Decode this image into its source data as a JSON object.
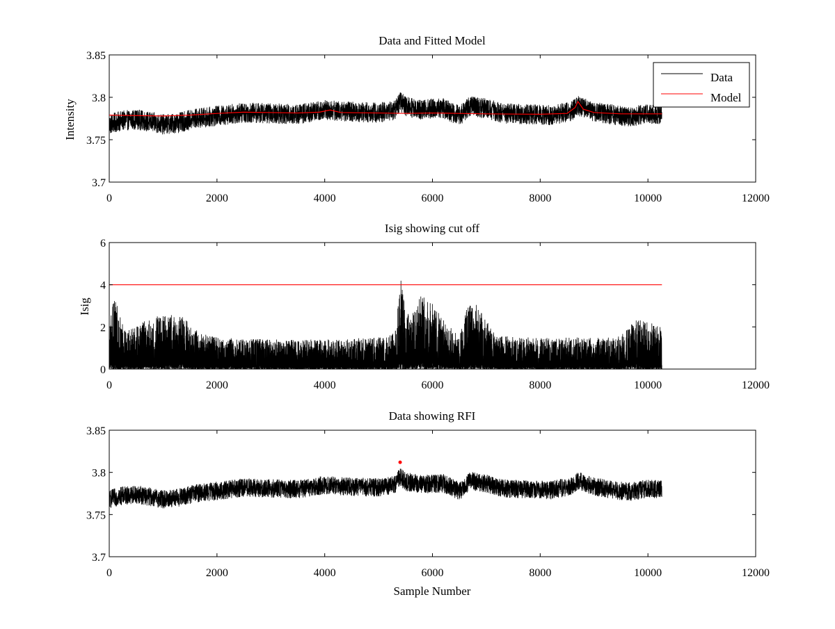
{
  "figure": {
    "background": "#ffffff"
  },
  "chart_data": [
    {
      "type": "line",
      "title": "Data and Fitted Model",
      "xlabel": "",
      "ylabel": "Intensity",
      "xlim": [
        0,
        12000
      ],
      "ylim": [
        3.7,
        3.85
      ],
      "xticks": [
        "0",
        "2000",
        "4000",
        "6000",
        "8000",
        "10000",
        "12000"
      ],
      "yticks": [
        "3.7",
        "3.75",
        "3.8",
        "3.85"
      ],
      "legend": {
        "placement": "top-right",
        "entries": [
          "Data",
          "Model"
        ]
      },
      "series": [
        {
          "name": "Data",
          "color": "#000000",
          "kind": "noisy",
          "n_samples": 10260,
          "noise_halfwidth": 0.012,
          "baseline": {
            "x": [
              0,
              200,
              500,
              1000,
              1300,
              1600,
              2000,
              2500,
              3000,
              3500,
              4000,
              4500,
              5000,
              5300,
              5400,
              5500,
              5800,
              6200,
              6500,
              6700,
              7000,
              7300,
              7800,
              8200,
              8600,
              8700,
              9000,
              9500,
              9700,
              10000,
              10260
            ],
            "y": [
              3.768,
              3.772,
              3.774,
              3.768,
              3.77,
              3.775,
              3.778,
              3.782,
              3.781,
              3.78,
              3.785,
              3.783,
              3.782,
              3.785,
              3.795,
              3.789,
              3.786,
              3.787,
              3.778,
              3.79,
              3.787,
              3.781,
              3.78,
              3.779,
              3.784,
              3.79,
              3.783,
              3.778,
              3.777,
              3.781,
              3.78
            ]
          }
        },
        {
          "name": "Model",
          "color": "#ff0000",
          "kind": "smooth",
          "x": [
            0,
            500,
            1000,
            1500,
            2000,
            2500,
            3000,
            3500,
            3900,
            4100,
            4300,
            5000,
            5500,
            6000,
            6500,
            7000,
            8000,
            8500,
            8650,
            8700,
            8800,
            9000,
            9500,
            10260
          ],
          "y": [
            3.779,
            3.7785,
            3.778,
            3.779,
            3.781,
            3.7825,
            3.782,
            3.7815,
            3.7825,
            3.785,
            3.782,
            3.7815,
            3.781,
            3.7815,
            3.781,
            3.7805,
            3.78,
            3.781,
            3.788,
            3.795,
            3.786,
            3.782,
            3.7805,
            3.7805
          ]
        }
      ]
    },
    {
      "type": "line",
      "title": "Isig showing cut off",
      "xlabel": "",
      "ylabel": "Isig",
      "xlim": [
        0,
        12000
      ],
      "ylim": [
        0,
        6
      ],
      "xticks": [
        "0",
        "2000",
        "4000",
        "6000",
        "8000",
        "10000",
        "12000"
      ],
      "yticks": [
        "0",
        "2",
        "4",
        "6"
      ],
      "series": [
        {
          "color": "#000000",
          "kind": "spiky",
          "n_samples": 10260,
          "envelope": {
            "x": [
              0,
              100,
              300,
              800,
              1300,
              1700,
              2000,
              3000,
              4000,
              5000,
              5300,
              5420,
              5500,
              5700,
              5800,
              6200,
              6500,
              6700,
              6900,
              7200,
              8000,
              9000,
              9500,
              9800,
              10260
            ],
            "y": [
              2.6,
              3.4,
              1.8,
              2.5,
              2.6,
              1.7,
              1.5,
              1.4,
              1.4,
              1.5,
              1.7,
              4.3,
              2.6,
              2.8,
              3.8,
              2.4,
              1.5,
              3.5,
              2.7,
              1.6,
              1.5,
              1.5,
              1.6,
              2.4,
              2.0
            ]
          }
        },
        {
          "color": "#ff0000",
          "kind": "cutoff",
          "x": [
            0,
            10260
          ],
          "y": [
            4,
            4
          ]
        }
      ]
    },
    {
      "type": "line",
      "title": "Data showing RFI",
      "xlabel": "Sample Number",
      "ylabel": "",
      "xlim": [
        0,
        12000
      ],
      "ylim": [
        3.7,
        3.85
      ],
      "xticks": [
        "0",
        "2000",
        "4000",
        "6000",
        "8000",
        "10000",
        "12000"
      ],
      "yticks": [
        "3.7",
        "3.75",
        "3.8",
        "3.85"
      ],
      "series": [
        {
          "color": "#000000",
          "kind": "noisy",
          "n_samples": 10260,
          "noise_halfwidth": 0.011,
          "baseline": {
            "x": [
              0,
              200,
              500,
              1000,
              1300,
              1600,
              2000,
              2500,
              3000,
              3500,
              4000,
              4500,
              5000,
              5300,
              5400,
              5500,
              5800,
              6200,
              6500,
              6700,
              7000,
              7300,
              7800,
              8200,
              8600,
              8700,
              9000,
              9500,
              9700,
              10000,
              10260
            ],
            "y": [
              3.768,
              3.772,
              3.774,
              3.768,
              3.77,
              3.775,
              3.778,
              3.782,
              3.781,
              3.78,
              3.785,
              3.783,
              3.782,
              3.785,
              3.795,
              3.789,
              3.786,
              3.787,
              3.778,
              3.79,
              3.787,
              3.781,
              3.78,
              3.779,
              3.784,
              3.79,
              3.783,
              3.778,
              3.777,
              3.781,
              3.78
            ]
          }
        },
        {
          "color": "#ff0000",
          "kind": "marker",
          "x": [
            5400
          ],
          "y": [
            3.812
          ]
        }
      ]
    }
  ]
}
